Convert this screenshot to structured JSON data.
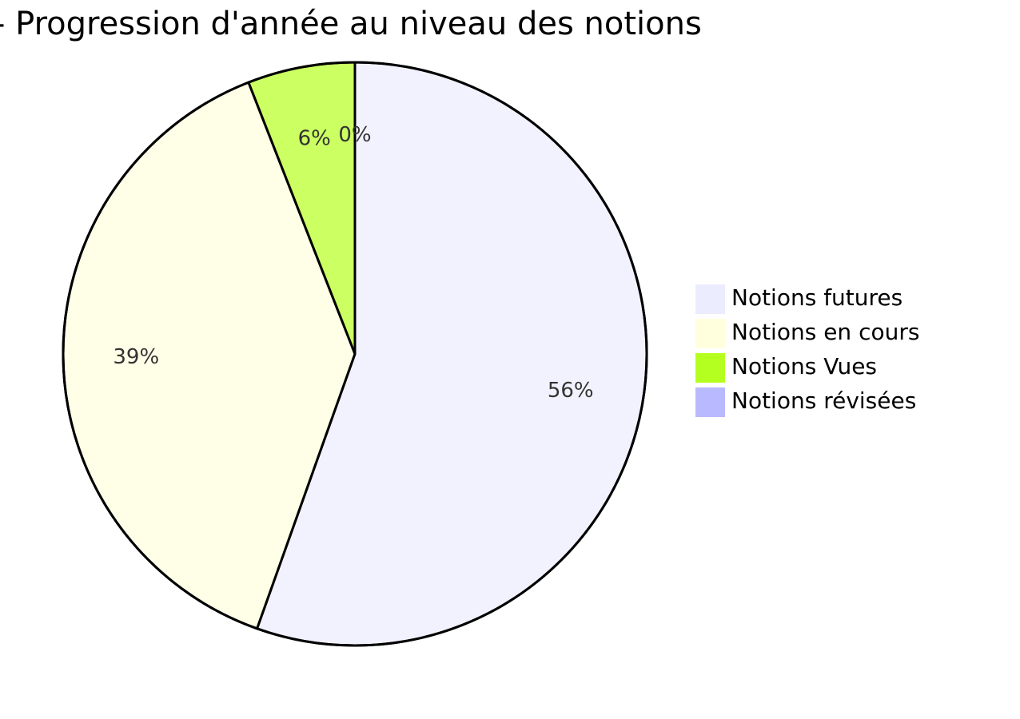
{
  "chart_data": {
    "type": "pie",
    "title": "- Progression d'année au niveau des notions",
    "categories": [
      "Notions futures",
      "Notions en cours",
      "Notions Vues",
      "Notions révisées"
    ],
    "values": [
      56,
      39,
      6,
      0
    ],
    "value_labels": [
      "56%",
      "39%",
      "6%",
      "0%"
    ],
    "colors": [
      "#ececff",
      "#ffffde",
      "#b5ff20",
      "#b9b9ff"
    ]
  }
}
